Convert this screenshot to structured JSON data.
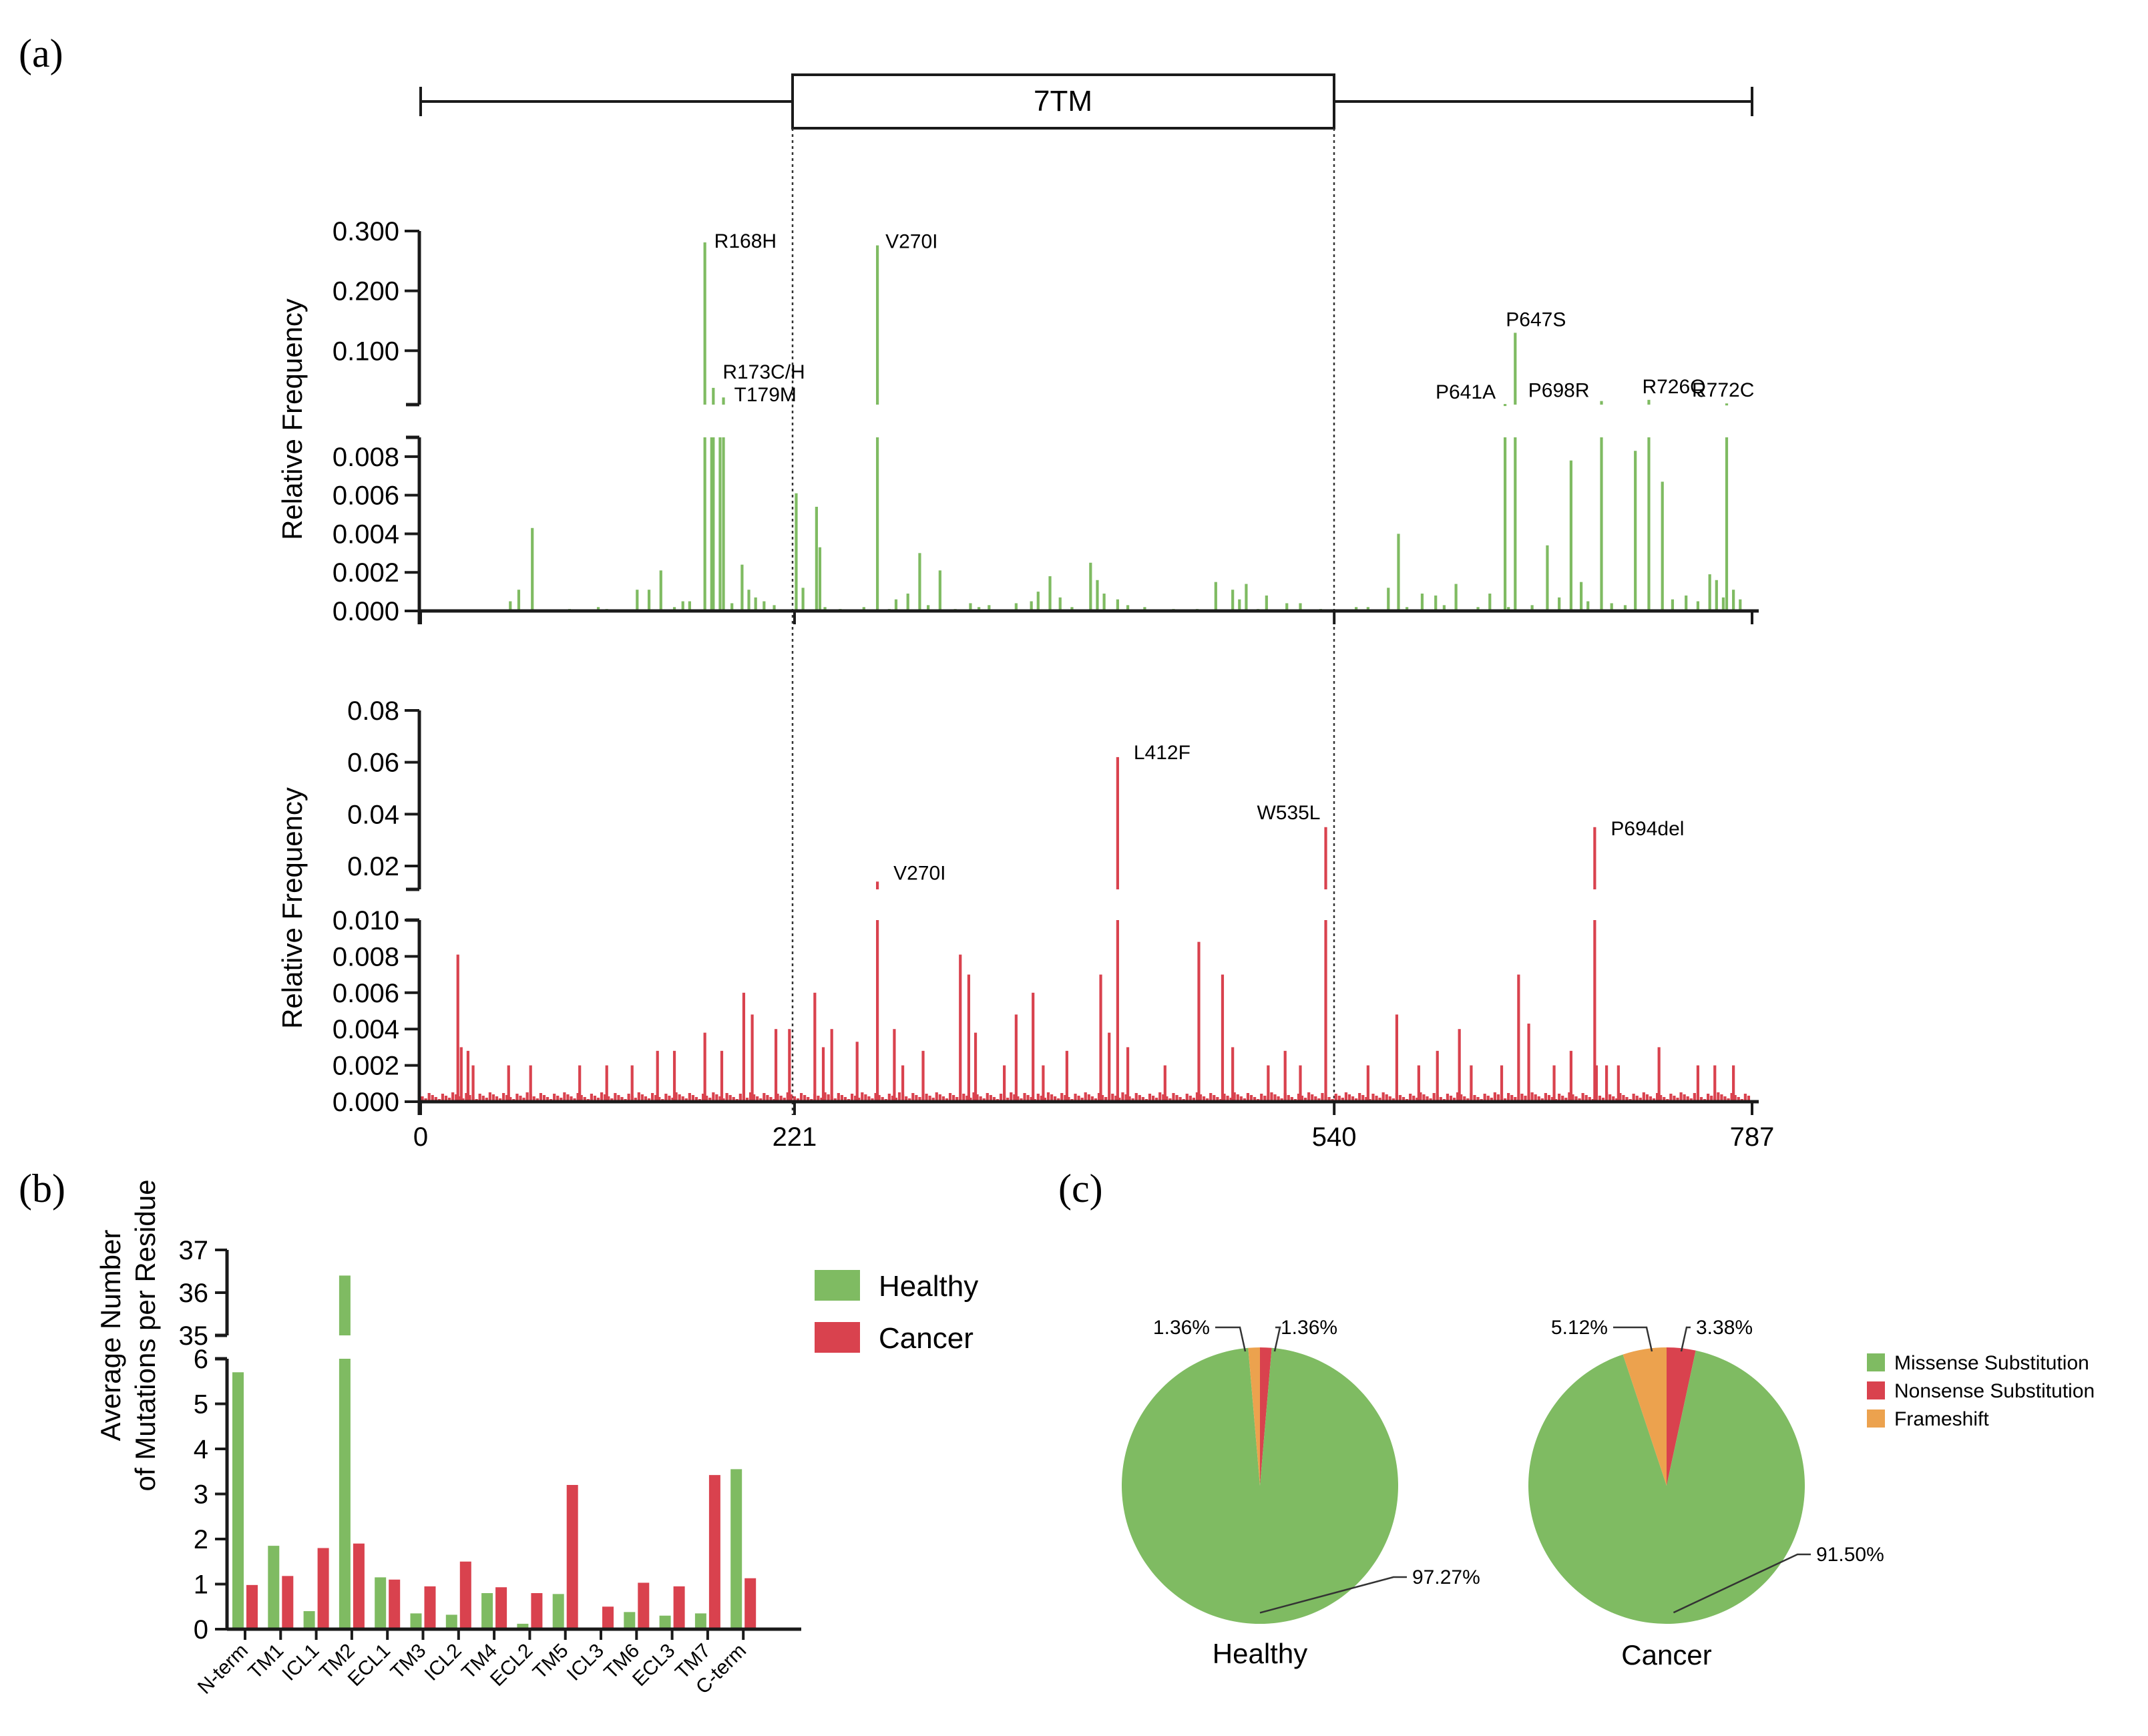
{
  "labels": {
    "a": "(a)",
    "b": "(b)",
    "c": "(c)"
  },
  "colors": {
    "healthy": "#7fbb62",
    "cancer": "#d9424e",
    "frameshift": "#eca24e",
    "axis": "#1a1a1a"
  },
  "chart_data": [
    {
      "id": "domain-bar",
      "type": "diagram",
      "domain_label": "7TM",
      "range": [
        0,
        787
      ],
      "domain_range": [
        221,
        540
      ]
    },
    {
      "id": "healthy-frequency",
      "type": "bar",
      "ylabel": "Relative Frequency",
      "xlim": [
        0,
        787
      ],
      "xticks": [
        "0",
        "221",
        "540",
        "787"
      ],
      "lower_ylim": [
        0,
        0.009
      ],
      "lower_yticks": [
        "0.000",
        "0.002",
        "0.004",
        "0.006",
        "0.008"
      ],
      "upper_ylim": [
        0.01,
        0.3
      ],
      "upper_yticks": [
        "0.100",
        "0.200",
        "0.300"
      ],
      "color": "#7fbb62",
      "highlights": [
        {
          "pos": 168,
          "value": 0.281,
          "label": "R168H"
        },
        {
          "pos": 173,
          "value": 0.038,
          "label": "R173C/H"
        },
        {
          "pos": 179,
          "value": 0.022,
          "label": "T179M"
        },
        {
          "pos": 270,
          "value": 0.276,
          "label": "V270I"
        },
        {
          "pos": 641,
          "value": 0.011,
          "label": "P641A"
        },
        {
          "pos": 647,
          "value": 0.13,
          "label": "P647S"
        },
        {
          "pos": 698,
          "value": 0.016,
          "label": "P698R"
        },
        {
          "pos": 726,
          "value": 0.018,
          "label": "R726Q"
        },
        {
          "pos": 772,
          "value": 0.012,
          "label": "R772C"
        }
      ],
      "minor_bars": [
        [
          53,
          0.0005
        ],
        [
          58,
          0.0011
        ],
        [
          66,
          0.0043
        ],
        [
          88,
          0.0001
        ],
        [
          105,
          0.0002
        ],
        [
          110,
          0.0001
        ],
        [
          128,
          0.0011
        ],
        [
          135,
          0.0011
        ],
        [
          142,
          0.0021
        ],
        [
          150,
          0.0002
        ],
        [
          155,
          0.0005
        ],
        [
          159,
          0.0005
        ],
        [
          172,
          0.009
        ],
        [
          177,
          0.009
        ],
        [
          184,
          0.0004
        ],
        [
          190,
          0.0024
        ],
        [
          194,
          0.0011
        ],
        [
          198,
          0.0007
        ],
        [
          203,
          0.0005
        ],
        [
          209,
          0.0003
        ],
        [
          222,
          0.0061
        ],
        [
          226,
          0.0012
        ],
        [
          234,
          0.0054
        ],
        [
          236,
          0.0033
        ],
        [
          239,
          0.0002
        ],
        [
          248,
          0.0001
        ],
        [
          262,
          0.0002
        ],
        [
          277,
          0.0001
        ],
        [
          281,
          0.0006
        ],
        [
          288,
          0.0009
        ],
        [
          295,
          0.003
        ],
        [
          300,
          0.0003
        ],
        [
          307,
          0.0021
        ],
        [
          316,
          0.0001
        ],
        [
          325,
          0.0004
        ],
        [
          330,
          0.0002
        ],
        [
          336,
          0.0003
        ],
        [
          352,
          0.0004
        ],
        [
          361,
          0.0005
        ],
        [
          365,
          0.001
        ],
        [
          372,
          0.0018
        ],
        [
          378,
          0.0007
        ],
        [
          385,
          0.0002
        ],
        [
          396,
          0.0025
        ],
        [
          400,
          0.0016
        ],
        [
          404,
          0.0009
        ],
        [
          412,
          0.0006
        ],
        [
          418,
          0.0003
        ],
        [
          428,
          0.0002
        ],
        [
          445,
          0.0001
        ],
        [
          459,
          0.0001
        ],
        [
          470,
          0.0015
        ],
        [
          480,
          0.0011
        ],
        [
          484,
          0.0006
        ],
        [
          488,
          0.0014
        ],
        [
          495,
          0.0001
        ],
        [
          500,
          0.0008
        ],
        [
          512,
          0.0004
        ],
        [
          520,
          0.0004
        ],
        [
          532,
          0.0001
        ],
        [
          553,
          0.0002
        ],
        [
          560,
          0.0002
        ],
        [
          572,
          0.0012
        ],
        [
          578,
          0.004
        ],
        [
          583,
          0.0002
        ],
        [
          592,
          0.0009
        ],
        [
          600,
          0.0008
        ],
        [
          605,
          0.0003
        ],
        [
          612,
          0.0014
        ],
        [
          625,
          0.0002
        ],
        [
          632,
          0.0009
        ],
        [
          643,
          0.0002
        ],
        [
          657,
          0.0003
        ],
        [
          666,
          0.0034
        ],
        [
          673,
          0.0007
        ],
        [
          680,
          0.0078
        ],
        [
          686,
          0.0015
        ],
        [
          690,
          0.0005
        ],
        [
          704,
          0.0004
        ],
        [
          712,
          0.0003
        ],
        [
          718,
          0.0083
        ],
        [
          734,
          0.0067
        ],
        [
          740,
          0.0006
        ],
        [
          748,
          0.0008
        ],
        [
          755,
          0.0005
        ],
        [
          762,
          0.0019
        ],
        [
          766,
          0.0016
        ],
        [
          770,
          0.0007
        ],
        [
          776,
          0.0011
        ],
        [
          780,
          0.0006
        ]
      ]
    },
    {
      "id": "cancer-frequency",
      "type": "bar",
      "ylabel": "Relative Frequency",
      "xlim": [
        0,
        787
      ],
      "xticks": [
        "0",
        "221",
        "540",
        "787"
      ],
      "lower_ylim": [
        0,
        0.01
      ],
      "lower_yticks": [
        "0.000",
        "0.002",
        "0.004",
        "0.006",
        "0.008",
        "0.010"
      ],
      "upper_ylim": [
        0.011,
        0.08
      ],
      "upper_yticks": [
        "0.02",
        "0.04",
        "0.06",
        "0.08"
      ],
      "color": "#d9424e",
      "highlights": [
        {
          "pos": 270,
          "value": 0.014,
          "label": "V270I"
        },
        {
          "pos": 412,
          "value": 0.062,
          "label": "L412F"
        },
        {
          "pos": 535,
          "value": 0.035,
          "label": "W535L"
        },
        {
          "pos": 694,
          "value": 0.035,
          "label": "P694del"
        }
      ],
      "minor_bars": [
        [
          22,
          0.0081
        ],
        [
          24,
          0.003
        ],
        [
          28,
          0.0028
        ],
        [
          31,
          0.002
        ],
        [
          52,
          0.002
        ],
        [
          65,
          0.002
        ],
        [
          94,
          0.002
        ],
        [
          110,
          0.002
        ],
        [
          125,
          0.002
        ],
        [
          140,
          0.0028
        ],
        [
          150,
          0.0028
        ],
        [
          168,
          0.0038
        ],
        [
          178,
          0.0028
        ],
        [
          191,
          0.006
        ],
        [
          196,
          0.0048
        ],
        [
          210,
          0.004
        ],
        [
          218,
          0.004
        ],
        [
          233,
          0.006
        ],
        [
          238,
          0.003
        ],
        [
          243,
          0.004
        ],
        [
          258,
          0.0033
        ],
        [
          280,
          0.004
        ],
        [
          285,
          0.002
        ],
        [
          297,
          0.0028
        ],
        [
          319,
          0.0081
        ],
        [
          324,
          0.007
        ],
        [
          328,
          0.0038
        ],
        [
          345,
          0.002
        ],
        [
          352,
          0.0048
        ],
        [
          362,
          0.006
        ],
        [
          368,
          0.002
        ],
        [
          382,
          0.0028
        ],
        [
          402,
          0.007
        ],
        [
          407,
          0.0038
        ],
        [
          418,
          0.003
        ],
        [
          440,
          0.002
        ],
        [
          460,
          0.0088
        ],
        [
          474,
          0.007
        ],
        [
          480,
          0.003
        ],
        [
          501,
          0.002
        ],
        [
          511,
          0.0028
        ],
        [
          520,
          0.002
        ],
        [
          560,
          0.002
        ],
        [
          577,
          0.0048
        ],
        [
          590,
          0.002
        ],
        [
          601,
          0.0028
        ],
        [
          614,
          0.004
        ],
        [
          621,
          0.002
        ],
        [
          639,
          0.002
        ],
        [
          649,
          0.007
        ],
        [
          655,
          0.0043
        ],
        [
          670,
          0.002
        ],
        [
          680,
          0.0028
        ],
        [
          695,
          0.002
        ],
        [
          701,
          0.002
        ],
        [
          708,
          0.002
        ],
        [
          732,
          0.003
        ],
        [
          755,
          0.002
        ],
        [
          765,
          0.002
        ],
        [
          776,
          0.002
        ]
      ]
    },
    {
      "id": "region-mutations",
      "type": "bar",
      "ylabel_lines": [
        "Average Number",
        "of Mutations per Residue"
      ],
      "categories": [
        "N-term",
        "TM1",
        "ICL1",
        "TM2",
        "ECL1",
        "TM3",
        "ICL2",
        "TM4",
        "ECL2",
        "TM5",
        "ICL3",
        "TM6",
        "ECL3",
        "TM7",
        "C-term"
      ],
      "series": [
        {
          "name": "Healthy",
          "values": [
            5.7,
            1.85,
            0.4,
            36.4,
            1.15,
            0.35,
            0.32,
            0.8,
            0.12,
            0.78,
            0.0,
            0.38,
            0.3,
            0.35,
            3.55
          ]
        },
        {
          "name": "Cancer",
          "values": [
            0.98,
            1.18,
            1.8,
            1.9,
            1.1,
            0.95,
            1.5,
            0.93,
            0.8,
            3.2,
            0.5,
            1.03,
            0.95,
            3.42,
            1.13
          ]
        }
      ],
      "lower_ylim": [
        0,
        6
      ],
      "lower_yticks": [
        "0",
        "1",
        "2",
        "3",
        "4",
        "5",
        "6"
      ],
      "upper_ylim": [
        35,
        37
      ],
      "upper_yticks": [
        "35",
        "36",
        "37"
      ],
      "legend": [
        "Healthy",
        "Cancer"
      ]
    },
    {
      "id": "mutation-type-pies",
      "type": "pie",
      "legend": [
        "Missense Substitution",
        "Nonsense Substitution",
        "Frameshift"
      ],
      "pies": [
        {
          "title": "Healthy",
          "slices": [
            {
              "name": "Missense Substitution",
              "value": 97.27,
              "label": "97.27%"
            },
            {
              "name": "Nonsense Substitution",
              "value": 1.36,
              "label": "1.36%"
            },
            {
              "name": "Frameshift",
              "value": 1.36,
              "label": "1.36%"
            }
          ]
        },
        {
          "title": "Cancer",
          "slices": [
            {
              "name": "Missense Substitution",
              "value": 91.5,
              "label": "91.50%"
            },
            {
              "name": "Nonsense Substitution",
              "value": 3.38,
              "label": "3.38%"
            },
            {
              "name": "Frameshift",
              "value": 5.12,
              "label": "5.12%"
            }
          ]
        }
      ]
    }
  ]
}
